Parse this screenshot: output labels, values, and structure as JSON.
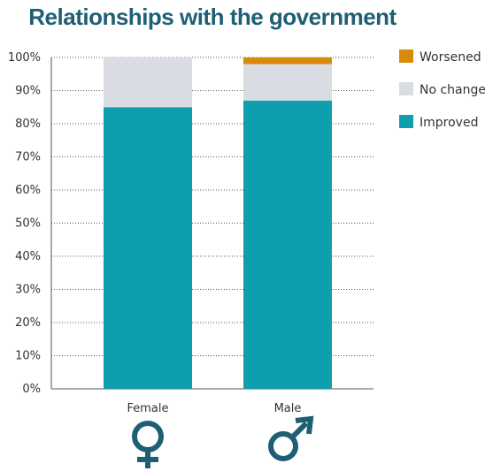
{
  "chart_data": {
    "type": "bar",
    "stacked": true,
    "title": "Relationships with the government",
    "categories": [
      "Female",
      "Male"
    ],
    "series": [
      {
        "name": "Improved",
        "color": "#0e9fae",
        "values": [
          85,
          87
        ]
      },
      {
        "name": "No change",
        "color": "#d9dce3",
        "values": [
          15,
          11
        ]
      },
      {
        "name": "Worsened",
        "color": "#d88a0a",
        "values": [
          0,
          2
        ]
      }
    ],
    "ylim": [
      0,
      100
    ],
    "yticks": [
      "0%",
      "10%",
      "20%",
      "30%",
      "40%",
      "50%",
      "60%",
      "70%",
      "80%",
      "90%",
      "100%"
    ],
    "grid": true,
    "legend_position": "top-right",
    "category_icons": [
      "female-symbol-icon",
      "male-symbol-icon"
    ],
    "icon_color": "#1f5f74"
  }
}
